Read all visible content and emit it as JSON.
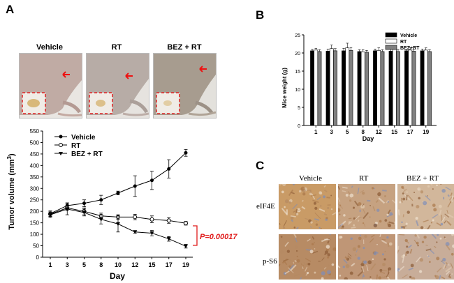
{
  "panels": {
    "a": "A",
    "b": "B",
    "c": "C"
  },
  "photos": {
    "labels": [
      "Vehicle",
      "RT",
      "BEZ + RT"
    ],
    "skin_colors": [
      "#c0aba4",
      "#b7aca6",
      "#a79c8f"
    ]
  },
  "annotation": {
    "pvalue": "P=0.00017",
    "pvalue_color": "#e01b1b"
  },
  "ihc": {
    "columns": [
      "Vehicle",
      "RT",
      "BEZ + RT"
    ],
    "rows": [
      "eIF4E",
      "p-S6"
    ]
  },
  "chart_data": [
    {
      "id": "tumor-volume",
      "type": "line",
      "title": "",
      "xlabel": "Day",
      "ylabel": "Tumor volume (mm³)",
      "ylabel_main": "Tumor volume (mm",
      "ylabel_sup": "3",
      "ylabel_end": ")",
      "x": [
        1,
        3,
        5,
        8,
        10,
        12,
        15,
        17,
        19
      ],
      "xticks": [
        "1",
        "3",
        "5",
        "8",
        "10",
        "12",
        "15",
        "17",
        "19"
      ],
      "ylim": [
        0,
        550
      ],
      "yticks": [
        0,
        50,
        100,
        150,
        200,
        250,
        300,
        350,
        400,
        450,
        500,
        550
      ],
      "series": [
        {
          "name": "Vehicle",
          "marker": "filled-circle",
          "values": [
            190,
            225,
            235,
            250,
            280,
            310,
            335,
            385,
            455
          ],
          "errors": [
            12,
            12,
            15,
            20,
            8,
            45,
            40,
            40,
            15
          ]
        },
        {
          "name": "RT",
          "marker": "open-circle",
          "values": [
            188,
            215,
            200,
            180,
            175,
            175,
            165,
            160,
            148
          ],
          "errors": [
            10,
            12,
            15,
            12,
            10,
            12,
            15,
            12,
            8
          ]
        },
        {
          "name": "BEZ + RT",
          "marker": "filled-triangle-down",
          "values": [
            185,
            210,
            195,
            165,
            145,
            110,
            105,
            80,
            48
          ],
          "errors": [
            12,
            25,
            15,
            20,
            35,
            5,
            12,
            10,
            8
          ]
        }
      ],
      "legend_position": "top-left"
    },
    {
      "id": "mice-weight",
      "type": "bar",
      "title": "",
      "xlabel": "Day",
      "ylabel": "Mice weight (g)",
      "categories": [
        "1",
        "3",
        "5",
        "8",
        "12",
        "15",
        "17",
        "19"
      ],
      "ylim": [
        0,
        25
      ],
      "yticks": [
        0,
        5,
        10,
        15,
        20,
        25
      ],
      "series": [
        {
          "name": "Vehicle",
          "color": "#000000",
          "values": [
            20.6,
            20.5,
            20.6,
            20.4,
            20.6,
            20.5,
            20.6,
            20.6
          ],
          "errors": [
            0.4,
            0.6,
            0.7,
            0.5,
            0.5,
            0.6,
            0.5,
            0.5
          ]
        },
        {
          "name": "RT",
          "color": "#ffffff",
          "values": [
            20.8,
            21.2,
            21.4,
            20.3,
            20.7,
            21.0,
            20.8,
            20.8
          ],
          "errors": [
            0.5,
            1.0,
            1.3,
            0.6,
            0.7,
            0.8,
            0.6,
            0.6
          ]
        },
        {
          "name": "BEZ+RT",
          "color": "#808080",
          "values": [
            20.4,
            20.6,
            20.7,
            20.2,
            20.4,
            20.4,
            20.5,
            20.4
          ],
          "errors": [
            0.5,
            0.6,
            0.8,
            0.5,
            0.5,
            0.6,
            0.5,
            0.5
          ]
        }
      ],
      "legend_position": "top-right"
    }
  ]
}
